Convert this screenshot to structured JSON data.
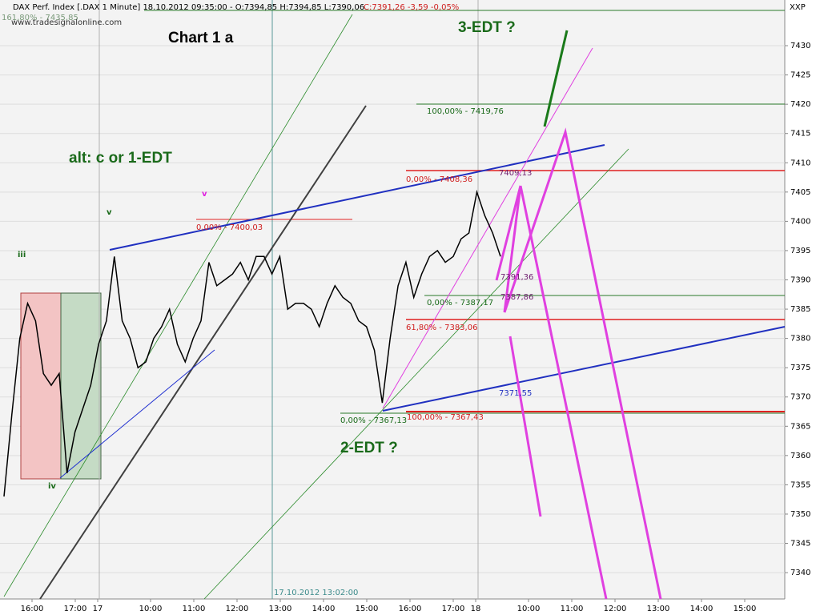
{
  "chart_data": {
    "type": "line",
    "header": {
      "title": "DAX Perf. Index [.DAX 1 Minute] 18.10.2012 09:35:00 - O:7394,85 H:7394,85 L:7390,06",
      "close": "C:7391,26 -3,59 -0,05%",
      "source": "www.tradesignalonline.com",
      "top_level": "161,80% - 7435,85",
      "axis_name": "XXP"
    },
    "annotations": {
      "chart_name": "Chart 1 a",
      "edt3": "3-EDT ?",
      "alt": "alt: c or 1-EDT",
      "edt2": "2-EDT ?",
      "wave_iii": "iii",
      "wave_iv": "iv",
      "wave_v": "v",
      "wave_v_alt": "v",
      "cursor": "17.10.2012 13:02:00"
    },
    "levels": {
      "l1": "100,00% - 7419,76",
      "l2": "0,00% - 7408,36",
      "l3": "7409,13",
      "l4": "0,00% - 7400,03",
      "l5": "7391,36",
      "l6": "7387,86",
      "l7": "0,00% - 7387,17",
      "l8": "61,80% - 7383,06",
      "l9": "7371,55",
      "l10": "0,00% - 7367,13",
      "l11": "100,00% - 7367,43"
    },
    "x_labels": [
      "16:00",
      "17:00",
      "17",
      "10:00",
      "11:00",
      "12:00",
      "13:00",
      "14:00",
      "15:00",
      "16:00",
      "17:00",
      "18",
      "10:00",
      "11:00",
      "12:00",
      "13:00",
      "14:00",
      "15:00"
    ],
    "series": [
      {
        "name": "DAX",
        "color": "#000000",
        "values": [
          7353,
          7367,
          7380,
          7386,
          7383,
          7374,
          7372,
          7374,
          7357,
          7364,
          7368,
          7372,
          7379,
          7383,
          7394,
          7383,
          7380,
          7375,
          7376,
          7380,
          7382,
          7385,
          7379,
          7376,
          7380,
          7383,
          7393,
          7389,
          7390,
          7391,
          7393,
          7390,
          7394,
          7394,
          7391,
          7394,
          7385,
          7386,
          7386,
          7385,
          7382,
          7386,
          7389,
          7387,
          7386,
          7383,
          7382,
          7378,
          7369,
          7380,
          7389,
          7393,
          7387,
          7391,
          7394,
          7395,
          7393,
          7394,
          7397,
          7398,
          7405,
          7401,
          7398,
          7394
        ]
      }
    ],
    "ylim": [
      7335.5,
      7437.8
    ],
    "yticks": [
      7340,
      7345,
      7350,
      7355,
      7360,
      7365,
      7370,
      7375,
      7380,
      7385,
      7390,
      7395,
      7400,
      7405,
      7410,
      7415,
      7420,
      7425,
      7430
    ],
    "grid": true
  }
}
